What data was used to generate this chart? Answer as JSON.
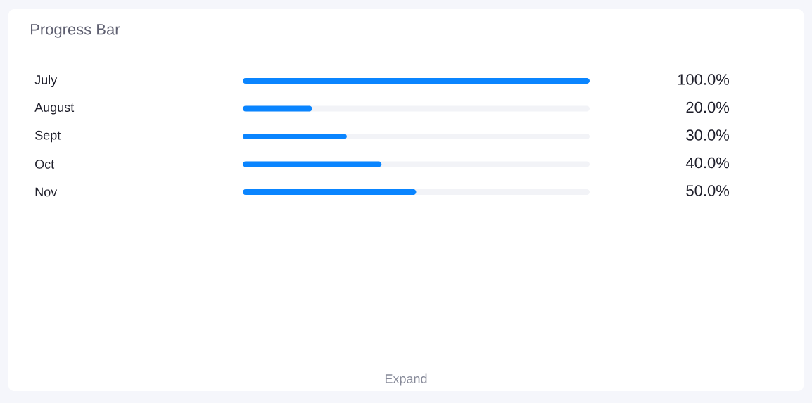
{
  "chart_data": {
    "type": "bar",
    "title": "Progress Bar",
    "orientation": "horizontal",
    "categories": [
      "July",
      "August",
      "Sept",
      "Oct",
      "Nov"
    ],
    "values": [
      100,
      20,
      30,
      40,
      50
    ],
    "value_labels": [
      "100.0%",
      "20.0%",
      "30.0%",
      "40.0%",
      "50.0%"
    ],
    "color": "#0a85ff",
    "xlim": [
      0,
      100
    ],
    "tick_labels": "y",
    "annotations": [
      "Expand"
    ]
  }
}
